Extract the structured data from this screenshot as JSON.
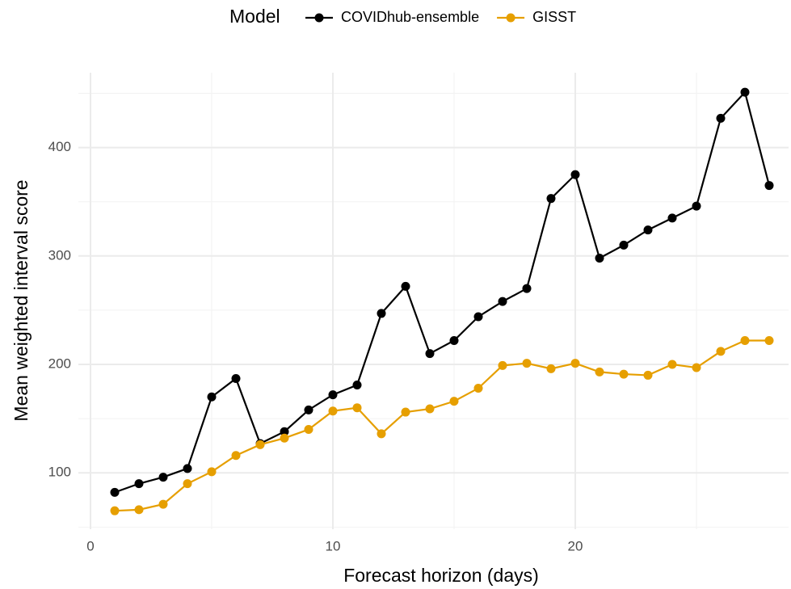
{
  "chart_data": {
    "type": "line",
    "legend_title": "Model",
    "x_label": "Forecast horizon (days)",
    "y_label": "Mean weighted interval score",
    "x": [
      1,
      2,
      3,
      4,
      5,
      6,
      7,
      8,
      9,
      10,
      11,
      12,
      13,
      14,
      15,
      16,
      17,
      18,
      19,
      20,
      21,
      22,
      23,
      24,
      25,
      26,
      27,
      28
    ],
    "series": [
      {
        "name": "COVIDhub-ensemble",
        "color": "#000000",
        "values": [
          82,
          90,
          96,
          104,
          170,
          187,
          127,
          138,
          158,
          172,
          181,
          247,
          272,
          210,
          222,
          244,
          258,
          270,
          353,
          375,
          298,
          310,
          324,
          335,
          346,
          427,
          451,
          365
        ]
      },
      {
        "name": "GISST",
        "color": "#E69F00",
        "values": [
          65,
          66,
          71,
          90,
          101,
          116,
          126,
          132,
          140,
          157,
          160,
          136,
          156,
          159,
          166,
          178,
          199,
          201,
          196,
          201,
          193,
          191,
          190,
          200,
          197,
          212,
          222,
          222
        ]
      }
    ],
    "xlim": [
      -0.5,
      28.8
    ],
    "xticks": [
      0,
      10,
      20
    ],
    "xminor": [
      5,
      15,
      25
    ],
    "ylim": [
      48,
      469
    ],
    "yticks": [
      100,
      200,
      300,
      400
    ],
    "yminor": [
      50,
      150,
      250,
      350,
      450
    ],
    "grid": true,
    "legend_position": "top"
  }
}
